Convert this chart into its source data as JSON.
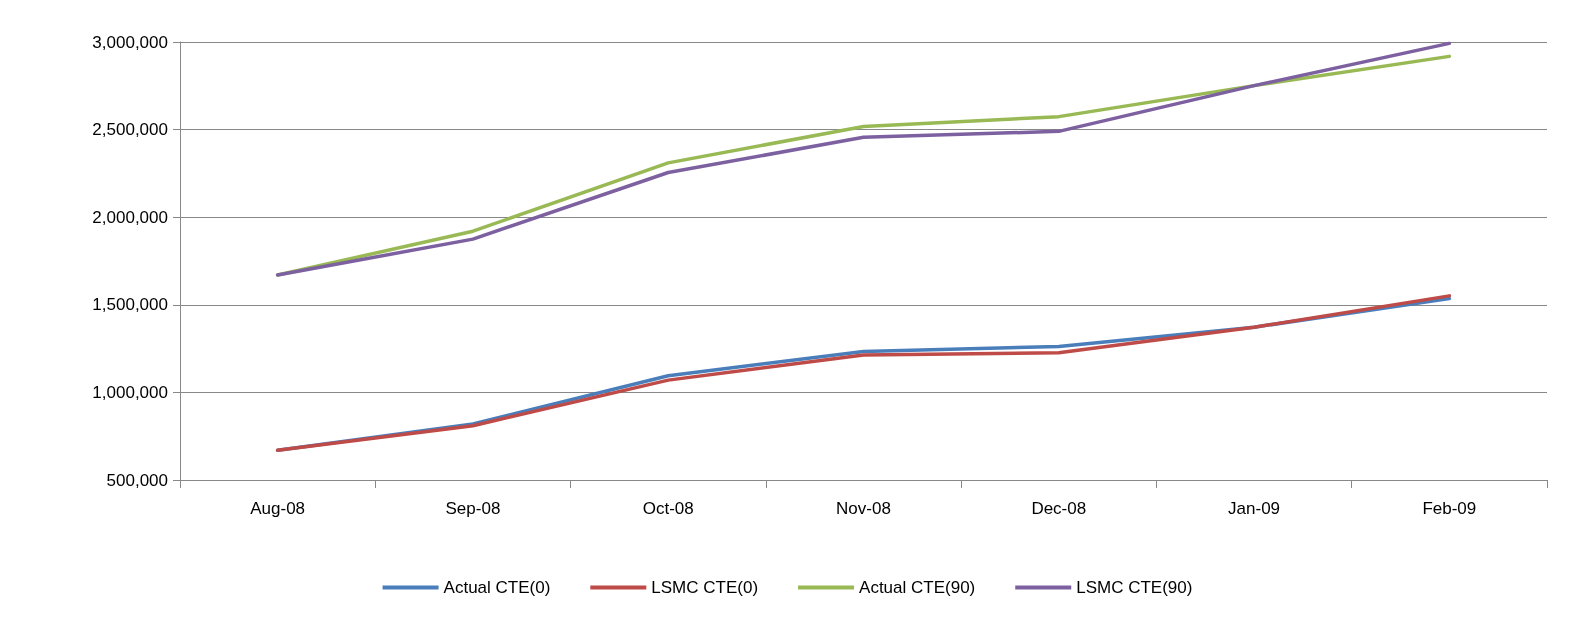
{
  "chart_data": {
    "type": "line",
    "categories": [
      "Aug-08",
      "Sep-08",
      "Oct-08",
      "Nov-08",
      "Dec-08",
      "Jan-09",
      "Feb-09"
    ],
    "series": [
      {
        "name": "Actual CTE(0)",
        "color": "#4a7ebb",
        "values": [
          670000,
          820000,
          1095000,
          1234000,
          1262000,
          1372000,
          1536000
        ]
      },
      {
        "name": "LSMC CTE(0)",
        "color": "#be4b48",
        "values": [
          670000,
          810000,
          1070000,
          1213000,
          1226000,
          1372000,
          1551000
        ]
      },
      {
        "name": "Actual CTE(90)",
        "color": "#98b954",
        "values": [
          1670000,
          1920000,
          2310000,
          2518000,
          2574000,
          2751000,
          2918000
        ]
      },
      {
        "name": "LSMC CTE(90)",
        "color": "#7d60a0",
        "values": [
          1670000,
          1875000,
          2255000,
          2456000,
          2490000,
          2751000,
          2992000
        ]
      }
    ],
    "ylim": [
      500000,
      3000000
    ],
    "yticks": [
      {
        "value": 500000,
        "label": "500,000"
      },
      {
        "value": 1000000,
        "label": "1,000,000"
      },
      {
        "value": 1500000,
        "label": "1,500,000"
      },
      {
        "value": 2000000,
        "label": "2,000,000"
      },
      {
        "value": 2500000,
        "label": "2,500,000"
      },
      {
        "value": 3000000,
        "label": "3,000,000"
      }
    ],
    "grid": "y",
    "legend": "bottom",
    "marker": "none",
    "line_style": "solid"
  }
}
